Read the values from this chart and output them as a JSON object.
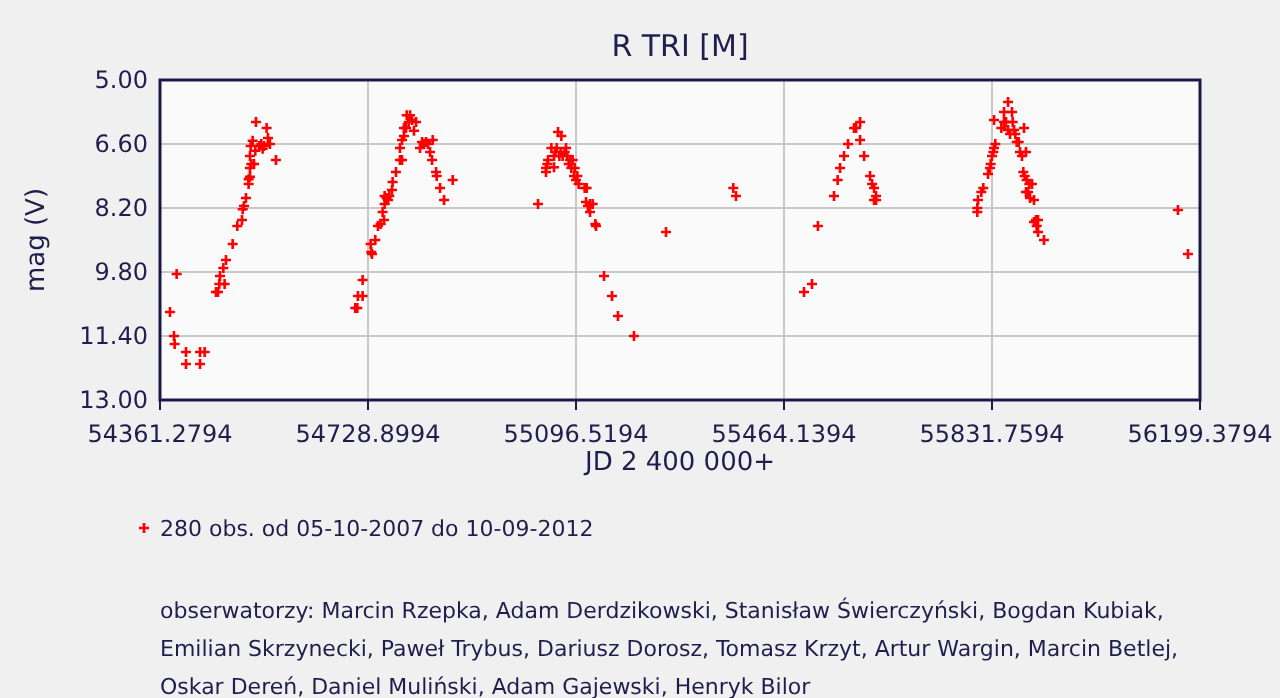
{
  "chart_data": {
    "type": "scatter",
    "title": "R TRI [M]",
    "xlabel": "JD 2 400 000+",
    "ylabel": "mag (V)",
    "xlim": [
      54361.2794,
      56199.3794
    ],
    "xticks": [
      54361.2794,
      54728.8994,
      55096.5194,
      55464.1394,
      55831.7594,
      56199.3794
    ],
    "ylim": [
      13,
      5
    ],
    "yticks": [
      {
        "value": 5,
        "label": "5.00"
      },
      {
        "value": 6.6,
        "label": "6.60"
      },
      {
        "value": 8.2,
        "label": "8.20"
      },
      {
        "value": 9.8,
        "label": "9.80"
      },
      {
        "value": 11.4,
        "label": "11.40"
      },
      {
        "value": 13,
        "label": "13.00"
      }
    ],
    "grid": true,
    "legend": "bottom",
    "marker": "cross",
    "annotations": [
      "obserwatorzy: Marcin Rzepka, Adam Derdzikowski, Stanisław Świerczyński, Bogdan Kubiak, Emilian Skrzynecki, Paweł Trybus, Dariusz Dorosz, Tomasz Krzyt, Artur Wargin, Marcin Betlej, Oskar Dereń, Daniel Muliński, Adam Gajewski, Henryk Bilor"
    ],
    "series": [
      {
        "name": "280 obs. od 05-10-2007 do 10-09-2012",
        "color": "#ff0000",
        "x": [
          54378.9,
          54386.0,
          54387.2,
          54390.7,
          54407.2,
          54407.2,
          54432,
          54432,
          54440.2,
          54460.2,
          54463.8,
          54466.1,
          54467.3,
          54473.2,
          54477.9,
          54475.5,
          54489.7,
          54497.9,
          54506.2,
          54507.4,
          54509.7,
          54513.2,
          54517.9,
          54517.9,
          54520.3,
          54520.3,
          54522.6,
          54520.3,
          54527.4,
          54521.5,
          54525,
          54529.7,
          54530.9,
          54536.8,
          54540.3,
          54542.7,
          54545,
          54549.7,
          54552.1,
          54555.6,
          54566.2,
          54706.4,
          54710,
          54711.1,
          54719.4,
          54719.4,
          54733.5,
          54734.7,
          54735.9,
          54741.8,
          54746.5,
          54751.2,
          54757.1,
          54754.7,
          54758.3,
          54758.3,
          54761.8,
          54764.2,
          54766.5,
          54771.2,
          54772.4,
          54778.3,
          54785.4,
          54789,
          54785.4,
          54789,
          54792.5,
          54792.5,
          54796.1,
          54797.3,
          54803.2,
          54800.8,
          54806.7,
          54810.2,
          54813.8,
          54820.8,
          54824.4,
          54827.9,
          54831.5,
          54835,
          54838.6,
          54843.3,
          54842.1,
          54849.2,
          54850.3,
          54856.2,
          54863.3,
          54878.6,
          55029.4,
          55043.5,
          55043.5,
          55045.9,
          55047.1,
          55053,
          55057.7,
          55057.7,
          55060,
          55062.4,
          55064.8,
          55067.1,
          55069.4,
          55070.6,
          55073,
          55076.5,
          55078.9,
          55081.2,
          55083.6,
          55086,
          55088.3,
          55090.6,
          55093,
          55094.2,
          55096.5,
          55098.9,
          55101.2,
          55111.8,
          55115.4,
          55114.2,
          55117.7,
          55121.3,
          55126,
          55121.3,
          55130.7,
          55131.9,
          55146,
          55160.1,
          55170.7,
          55199,
          55255.6,
          55374.5,
          55379.3,
          55499.5,
          55513.6,
          55524.1,
          55552.5,
          55559,
          55563.2,
          55570.2,
          55577.3,
          55588,
          55591.5,
          55598.6,
          55598.6,
          55605.7,
          55616.2,
          55619.8,
          55623.3,
          55623.3,
          55626.8,
          55626.8,
          55805.8,
          55805.8,
          55807,
          55812.9,
          55816.4,
          55824.7,
          55828.2,
          55829.4,
          55831.8,
          55834.1,
          55835.3,
          55837.6,
          55835.3,
          55848.3,
          55853,
          55853,
          55856.5,
          55860.1,
          55860.1,
          55863.6,
          55867.1,
          55868.3,
          55870.7,
          55873,
          55875.4,
          55878.9,
          55881.2,
          55884.8,
          55888.3,
          55887.1,
          55889.5,
          55891.8,
          55893,
          55897.7,
          55902.4,
          55891.8,
          55895.4,
          55898.9,
          55906,
          55906,
          55909.5,
          55913.1,
          55910.7,
          55913.1,
          55923.6,
          56160.4,
          56178.1
        ],
        "values": [
          10.8,
          11.4,
          11.6,
          9.85,
          12.1,
          11.8,
          12.1,
          11.8,
          11.8,
          10.3,
          10.3,
          10.1,
          9.9,
          9.7,
          9.5,
          10.1,
          9.1,
          8.65,
          8.5,
          8.23,
          8.15,
          7.95,
          7.6,
          7.48,
          7.42,
          7.2,
          7.1,
          6.9,
          7.1,
          6.65,
          6.52,
          6.77,
          6.05,
          6.65,
          6.6,
          6.72,
          6.65,
          6.2,
          6.45,
          6.6,
          7.0,
          10.7,
          10.7,
          10.4,
          10.4,
          10.0,
          9.1,
          9.3,
          9.35,
          9.0,
          8.65,
          8.6,
          8.5,
          8.3,
          8.1,
          7.9,
          7.95,
          8.0,
          7.9,
          7.75,
          7.55,
          7.3,
          7.0,
          7.0,
          6.7,
          6.5,
          6.4,
          6.2,
          6.2,
          5.88,
          5.88,
          6.05,
          6.0,
          6.27,
          6.05,
          6.7,
          6.55,
          6.6,
          6.55,
          6.6,
          6.8,
          6.5,
          7.0,
          7.3,
          7.4,
          7.7,
          8.0,
          7.5,
          8.1,
          7.3,
          7.2,
          7.1,
          7.0,
          6.7,
          7.18,
          6.9,
          6.8,
          6.7,
          6.3,
          6.9,
          6.8,
          6.4,
          6.9,
          6.8,
          6.7,
          6.9,
          7.1,
          7.0,
          7.2,
          7.0,
          7.4,
          7.2,
          7.5,
          7.4,
          7.6,
          7.7,
          7.7,
          8.05,
          8.15,
          8.1,
          8.1,
          8.3,
          8.6,
          8.65,
          9.9,
          10.4,
          10.9,
          11.4,
          8.8,
          7.7,
          7.9,
          10.3,
          10.1,
          8.65,
          7.9,
          7.5,
          7.2,
          6.9,
          6.6,
          6.2,
          6.2,
          6.05,
          6.5,
          6.9,
          7.4,
          7.6,
          7.7,
          8.0,
          7.9,
          8.0,
          8.3,
          8.2,
          8.0,
          7.8,
          7.7,
          7.35,
          7.2,
          7.1,
          6.9,
          6.8,
          6.7,
          6.6,
          6.0,
          6.2,
          6.05,
          5.8,
          6.05,
          5.55,
          6.25,
          6.35,
          5.8,
          6.05,
          6.25,
          6.35,
          6.55,
          6.55,
          6.8,
          6.9,
          6.2,
          7.3,
          7.4,
          6.8,
          7.5,
          7.6,
          7.6,
          7.8,
          7.8,
          7.95,
          8.0,
          8.55,
          8.5,
          8.5,
          8.65,
          8.8,
          9.0,
          8.25,
          9.35
        ]
      }
    ]
  }
}
